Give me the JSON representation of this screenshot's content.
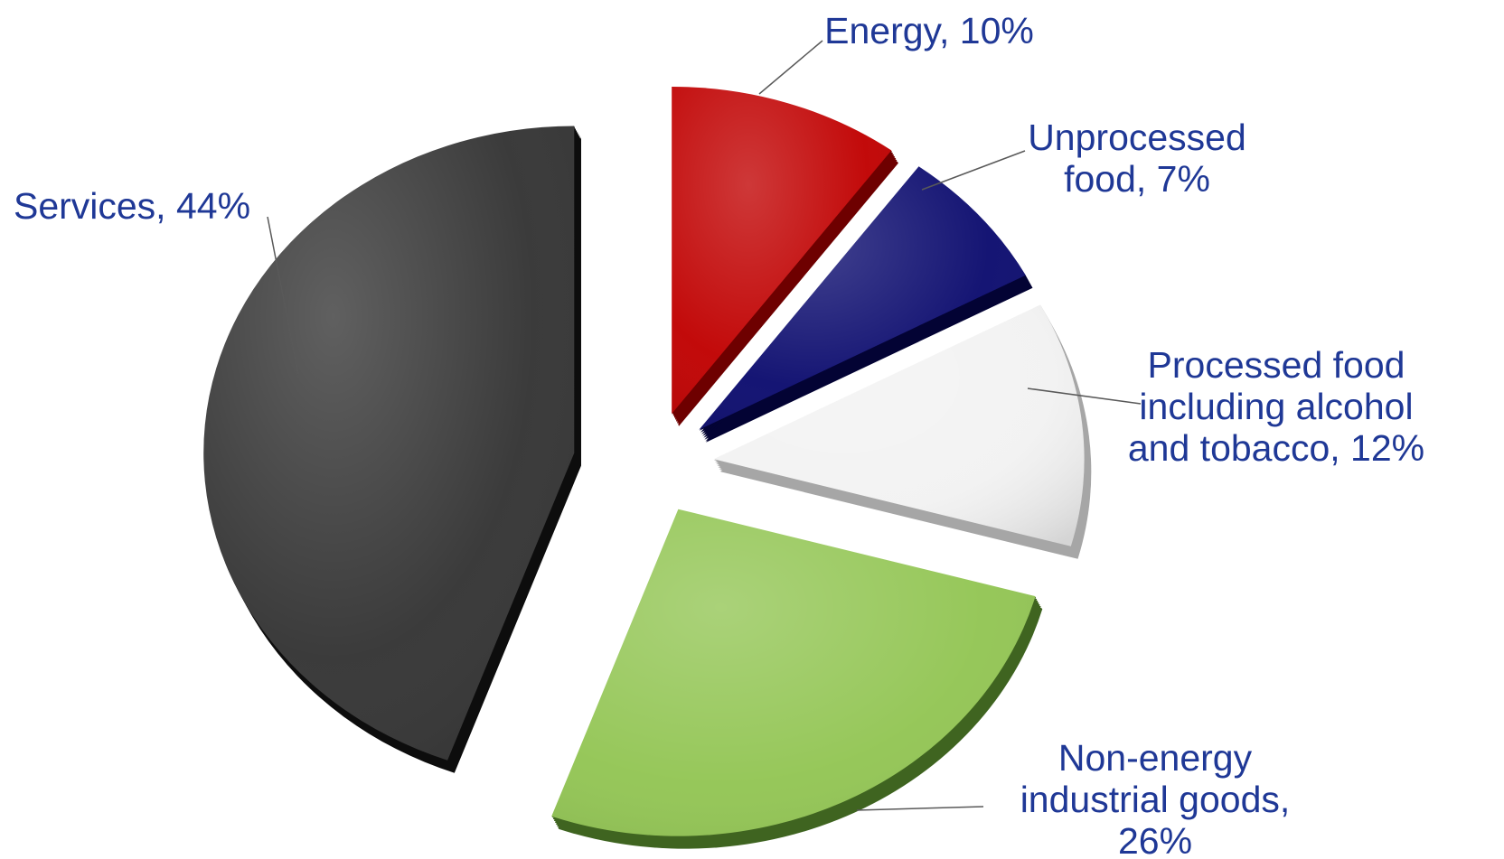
{
  "chart_data": {
    "type": "pie",
    "title": "",
    "style": "3d-exploded",
    "label_color": "#1f3896",
    "leader_color": "#595959",
    "slices": [
      {
        "category": "Energy",
        "value": 10,
        "label_lines": [
          "Energy, 10%"
        ],
        "color": "#c00000",
        "side_color": "#6e0000"
      },
      {
        "category": "Unprocessed food",
        "value": 7,
        "label_lines": [
          "Unprocessed",
          "food, 7%"
        ],
        "color": "#0b0b6e",
        "side_color": "#030334"
      },
      {
        "category": "Processed food including alcohol and tobacco",
        "value": 12,
        "label_lines": [
          "Processed food",
          "including alcohol",
          "and tobacco, 12%"
        ],
        "color": "#f2f2f2",
        "side_color": "#a6a6a6"
      },
      {
        "category": "Non-energy industrial goods",
        "value": 26,
        "label_lines": [
          "Non-energy",
          "industrial goods,",
          "26%"
        ],
        "color": "#92c553",
        "side_color": "#3f6420"
      },
      {
        "category": "Services",
        "value": 44,
        "label_lines": [
          "Services, 44%"
        ],
        "color": "#333333",
        "side_color": "#0d0d0d"
      }
    ]
  }
}
